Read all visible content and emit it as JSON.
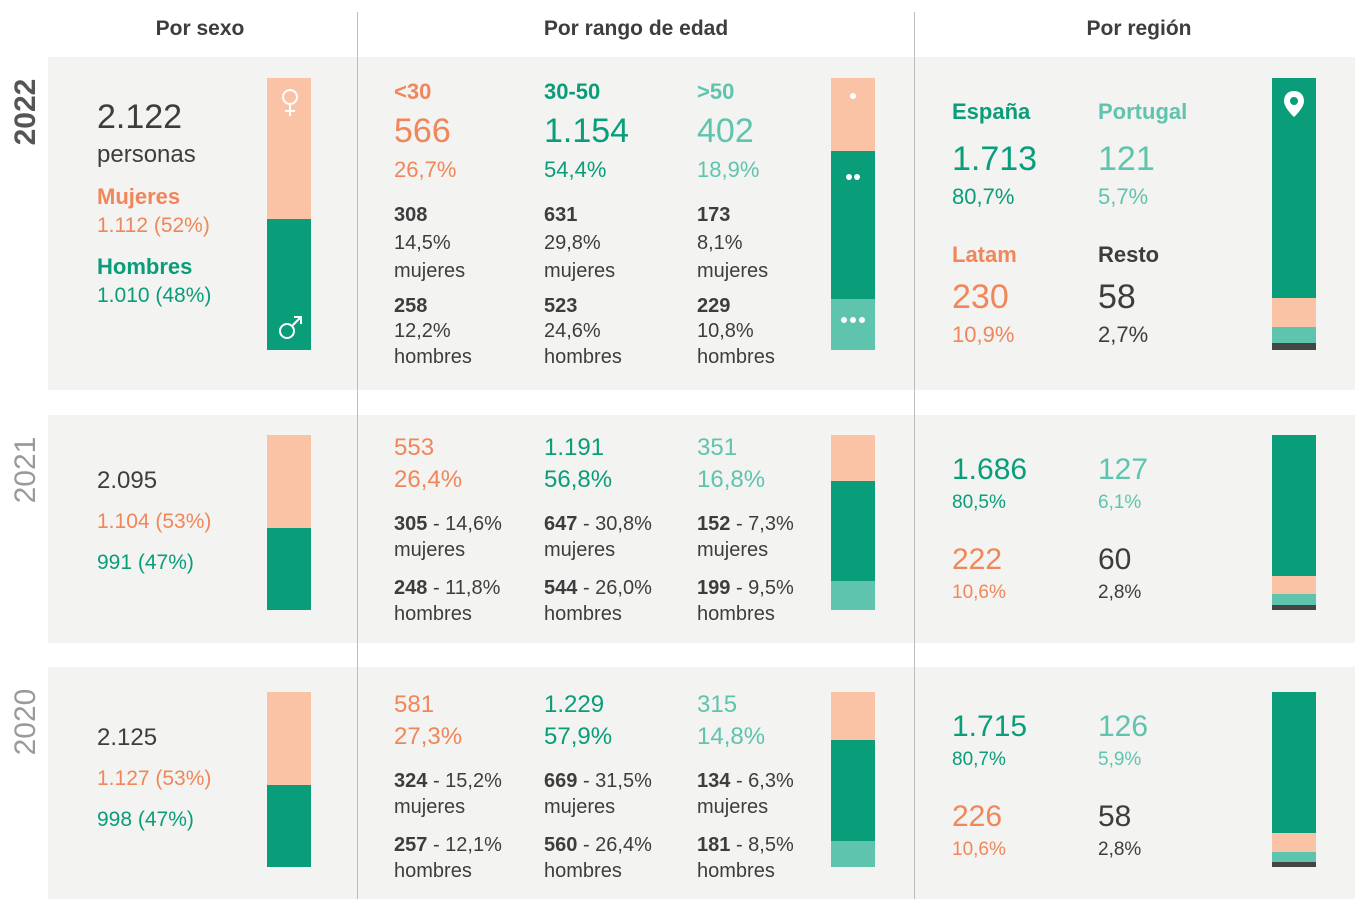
{
  "headers": [
    "Por sexo",
    "Por rango de edad",
    "Por región"
  ],
  "years": [
    {
      "year": "2022",
      "sexo": {
        "total": "2.122",
        "unit": "personas",
        "mujeres_label": "Mujeres",
        "mujeres": "1.112 (52%)",
        "hombres_label": "Hombres",
        "hombres": "1.010 (48%)"
      },
      "edad": [
        {
          "label": "<30",
          "value": "566",
          "pct": "26,7%",
          "mujeres": {
            "count": "308",
            "detail": "14,5%",
            "label": "mujeres"
          },
          "hombres": {
            "count": "258",
            "detail": "12,2%",
            "label": "hombres"
          }
        },
        {
          "label": "30-50",
          "value": "1.154",
          "pct": "54,4%",
          "mujeres": {
            "count": "631",
            "detail": "29,8%",
            "label": "mujeres"
          },
          "hombres": {
            "count": "523",
            "detail": "24,6%",
            "label": "hombres"
          }
        },
        {
          "label": ">50",
          "value": "402",
          "pct": "18,9%",
          "mujeres": {
            "count": "173",
            "detail": "8,1%",
            "label": "mujeres"
          },
          "hombres": {
            "count": "229",
            "detail": "10,8%",
            "label": "hombres"
          }
        }
      ],
      "region": [
        {
          "label": "España",
          "value": "1.713",
          "pct": "80,7%"
        },
        {
          "label": "Portugal",
          "value": "121",
          "pct": "5,7%"
        },
        {
          "label": "Latam",
          "value": "230",
          "pct": "10,9%"
        },
        {
          "label": "Resto",
          "value": "58",
          "pct": "2,7%"
        }
      ]
    },
    {
      "year": "2021",
      "sexo": {
        "total": "2.095",
        "mujeres": "1.104 (53%)",
        "hombres": "991 (47%)"
      },
      "edad": [
        {
          "value": "553",
          "pct": "26,4%",
          "mujeres": {
            "count": "305",
            "detail": "- 14,6%",
            "label": "mujeres"
          },
          "hombres": {
            "count": "248",
            "detail": "- 11,8%",
            "label": "hombres"
          }
        },
        {
          "value": "1.191",
          "pct": "56,8%",
          "mujeres": {
            "count": "647",
            "detail": "- 30,8%",
            "label": "mujeres"
          },
          "hombres": {
            "count": "544",
            "detail": "- 26,0%",
            "label": "hombres"
          }
        },
        {
          "value": "351",
          "pct": "16,8%",
          "mujeres": {
            "count": "152",
            "detail": "- 7,3%",
            "label": "mujeres"
          },
          "hombres": {
            "count": "199",
            "detail": "- 9,5%",
            "label": "hombres"
          }
        }
      ],
      "region": [
        {
          "value": "1.686",
          "pct": "80,5%"
        },
        {
          "value": "127",
          "pct": "6,1%"
        },
        {
          "value": "222",
          "pct": "10,6%"
        },
        {
          "value": "60",
          "pct": "2,8%"
        }
      ]
    },
    {
      "year": "2020",
      "sexo": {
        "total": "2.125",
        "mujeres": "1.127 (53%)",
        "hombres": "998 (47%)"
      },
      "edad": [
        {
          "value": "581",
          "pct": "27,3%",
          "mujeres": {
            "count": "324",
            "detail": "- 15,2%",
            "label": "mujeres"
          },
          "hombres": {
            "count": "257",
            "detail": "- 12,1%",
            "label": "hombres"
          }
        },
        {
          "value": "1.229",
          "pct": "57,9%",
          "mujeres": {
            "count": "669",
            "detail": "- 31,5%",
            "label": "mujeres"
          },
          "hombres": {
            "count": "560",
            "detail": "- 26,4%",
            "label": "hombres"
          }
        },
        {
          "value": "315",
          "pct": "14,8%",
          "mujeres": {
            "count": "134",
            "detail": "- 6,3%",
            "label": "mujeres"
          },
          "hombres": {
            "count": "181",
            "detail": "- 8,5%",
            "label": "hombres"
          }
        }
      ],
      "region": [
        {
          "value": "1.715",
          "pct": "80,7%"
        },
        {
          "value": "126",
          "pct": "5,9%"
        },
        {
          "value": "226",
          "pct": "10,6%"
        },
        {
          "value": "58",
          "pct": "2,8%"
        }
      ]
    }
  ]
}
